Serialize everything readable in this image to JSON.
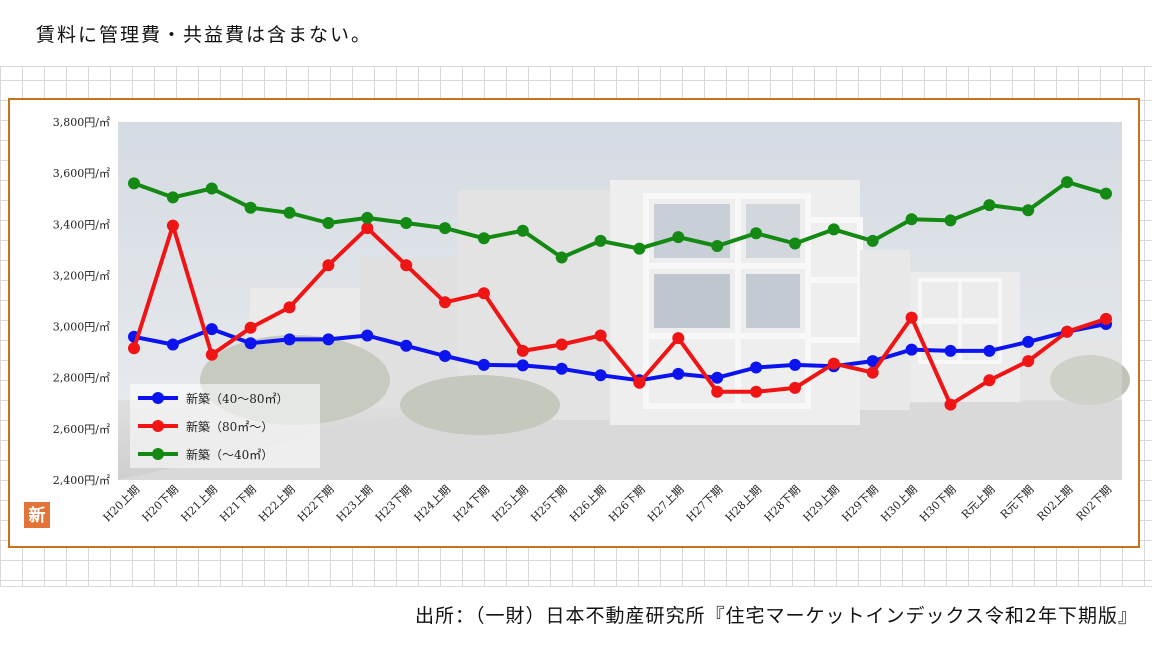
{
  "note": "賃料に管理費・共益費は含まない。",
  "source": "出所：（一財）日本不動産研究所『住宅マーケットインデックス令和2年下期版』",
  "badge": "新",
  "colors": {
    "frame": "#c8721c",
    "badge": "#e2743a",
    "series": [
      "#0b14f0",
      "#f01414",
      "#148a14"
    ]
  },
  "chart_data": {
    "type": "line",
    "title": "",
    "xlabel": "",
    "ylabel": "",
    "ylim": [
      2400,
      3800
    ],
    "ytick_values": [
      2400,
      2600,
      2800,
      3000,
      3200,
      3400,
      3600,
      3800
    ],
    "yticks": [
      "2,400円/㎡",
      "2,600円/㎡",
      "2,800円/㎡",
      "3,000円/㎡",
      "3,200円/㎡",
      "3,400円/㎡",
      "3,600円/㎡",
      "3,800円/㎡"
    ],
    "grid": false,
    "legend_position": "bottom-left",
    "background": "photo of a modern apartment building",
    "categories": [
      "H20上期",
      "H20下期",
      "H21上期",
      "H21下期",
      "H22上期",
      "H22下期",
      "H23上期",
      "H23下期",
      "H24上期",
      "H24下期",
      "H25上期",
      "H25下期",
      "H26上期",
      "H26下期",
      "H27上期",
      "H27下期",
      "H28上期",
      "H28下期",
      "H29上期",
      "H29下期",
      "H30上期",
      "H30下期",
      "R元上期",
      "R元下期",
      "R02上期",
      "R02下期"
    ],
    "series": [
      {
        "name": "新築（40～80㎡）",
        "color": "#0b14f0",
        "values": [
          2960,
          2930,
          2990,
          2935,
          2950,
          2950,
          2965,
          2925,
          2885,
          2850,
          2848,
          2835,
          2810,
          2790,
          2815,
          2800,
          2840,
          2850,
          2845,
          2865,
          2910,
          2905,
          2905,
          2940,
          2980,
          3010
        ]
      },
      {
        "name": "新築（80㎡～）",
        "color": "#f01414",
        "values": [
          2915,
          3395,
          2890,
          2995,
          3075,
          3240,
          3385,
          3240,
          3095,
          3130,
          2905,
          2930,
          2965,
          2780,
          2955,
          2745,
          2745,
          2760,
          2855,
          2820,
          3035,
          2695,
          2790,
          2865,
          2980,
          3030
        ]
      },
      {
        "name": "新築（～40㎡）",
        "color": "#148a14",
        "values": [
          3560,
          3505,
          3540,
          3465,
          3445,
          3405,
          3425,
          3405,
          3385,
          3345,
          3375,
          3270,
          3335,
          3305,
          3350,
          3315,
          3365,
          3325,
          3380,
          3335,
          3420,
          3415,
          3475,
          3455,
          3565,
          3520
        ]
      }
    ]
  }
}
